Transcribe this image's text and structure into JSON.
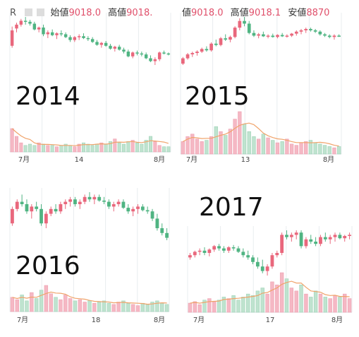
{
  "colors": {
    "up": "#e9677c",
    "down": "#4fb482",
    "vol_up": "#f5b8c4",
    "vol_down": "#bfe3cf",
    "ma": "#f0a36a",
    "grid": "#e8ecef"
  },
  "header": {
    "left": {
      "cut_char": "R",
      "open_label": "始値",
      "open_value": "9018.0",
      "high_label": "高値",
      "high_value": "9018."
    },
    "right": {
      "open_label": "値",
      "open_value": "9018.0",
      "high_label": "高値",
      "high_value": "9018.1",
      "low_label": "安値",
      "low_value": "8870"
    }
  },
  "chart_data": [
    {
      "type": "candlestick",
      "year_label": "2014",
      "x_ticks": [
        "7月",
        "14",
        "8月"
      ],
      "ohlc": [
        [
          8,
          28,
          6,
          24
        ],
        [
          26,
          32,
          22,
          30
        ],
        [
          30,
          36,
          28,
          34
        ],
        [
          34,
          38,
          30,
          33
        ],
        [
          33,
          35,
          29,
          31
        ],
        [
          31,
          33,
          24,
          25
        ],
        [
          25,
          28,
          22,
          27
        ],
        [
          27,
          30,
          18,
          20
        ],
        [
          20,
          24,
          16,
          22
        ],
        [
          22,
          25,
          18,
          19
        ],
        [
          19,
          22,
          15,
          21
        ],
        [
          21,
          24,
          18,
          20
        ],
        [
          20,
          22,
          16,
          17
        ],
        [
          17,
          19,
          12,
          14
        ],
        [
          14,
          18,
          12,
          17
        ],
        [
          17,
          20,
          14,
          18
        ],
        [
          18,
          21,
          15,
          16
        ],
        [
          16,
          18,
          13,
          15
        ],
        [
          15,
          17,
          11,
          12
        ],
        [
          12,
          14,
          8,
          9
        ],
        [
          9,
          12,
          6,
          11
        ],
        [
          11,
          13,
          7,
          8
        ],
        [
          8,
          10,
          4,
          5
        ],
        [
          5,
          8,
          2,
          7
        ],
        [
          7,
          9,
          3,
          4
        ],
        [
          4,
          6,
          0,
          2
        ],
        [
          2,
          4,
          -4,
          -3
        ],
        [
          -3,
          2,
          -5,
          1
        ],
        [
          1,
          3,
          -2,
          0
        ],
        [
          0,
          2,
          -3,
          -1
        ],
        [
          -1,
          1,
          -6,
          -5
        ],
        [
          -5,
          -2,
          -9,
          -8
        ],
        [
          -8,
          -4,
          -12,
          -6
        ],
        [
          -6,
          2,
          -8,
          1
        ],
        [
          1,
          3,
          -1,
          0
        ],
        [
          0,
          1,
          -2,
          -1
        ]
      ],
      "volume": [
        18,
        12,
        7,
        5,
        6,
        5,
        7,
        6,
        5,
        5,
        4,
        5,
        6,
        5,
        4,
        6,
        7,
        6,
        5,
        6,
        7,
        6,
        8,
        10,
        7,
        6,
        8,
        9,
        7,
        6,
        9,
        12,
        8,
        5,
        4,
        4
      ]
    },
    {
      "type": "candlestick",
      "year_label": "2015",
      "x_ticks": [
        "7月",
        "13",
        "8月"
      ],
      "ohlc": [
        [
          -20,
          -10,
          -22,
          -12
        ],
        [
          -12,
          -4,
          -14,
          -6
        ],
        [
          -6,
          -2,
          -10,
          -4
        ],
        [
          -4,
          0,
          -8,
          -2
        ],
        [
          -2,
          4,
          -4,
          2
        ],
        [
          2,
          6,
          -2,
          0
        ],
        [
          0,
          12,
          -2,
          10
        ],
        [
          10,
          16,
          6,
          8
        ],
        [
          8,
          20,
          6,
          18
        ],
        [
          18,
          24,
          14,
          16
        ],
        [
          16,
          22,
          12,
          20
        ],
        [
          20,
          36,
          18,
          34
        ],
        [
          34,
          48,
          30,
          44
        ],
        [
          44,
          50,
          36,
          40
        ],
        [
          40,
          44,
          24,
          26
        ],
        [
          26,
          30,
          20,
          22
        ],
        [
          22,
          26,
          18,
          24
        ],
        [
          24,
          28,
          20,
          21
        ],
        [
          21,
          24,
          18,
          22
        ],
        [
          22,
          25,
          19,
          20
        ],
        [
          20,
          24,
          18,
          23
        ],
        [
          23,
          26,
          20,
          21
        ],
        [
          21,
          24,
          19,
          22
        ],
        [
          22,
          26,
          20,
          25
        ],
        [
          25,
          30,
          22,
          28
        ],
        [
          28,
          32,
          24,
          30
        ],
        [
          30,
          34,
          26,
          32
        ],
        [
          32,
          34,
          28,
          30
        ],
        [
          30,
          32,
          26,
          28
        ],
        [
          28,
          30,
          22,
          24
        ],
        [
          24,
          26,
          20,
          22
        ],
        [
          22,
          24,
          18,
          20
        ],
        [
          20,
          24,
          16,
          22
        ],
        [
          22,
          24,
          20,
          21
        ]
      ],
      "volume": [
        10,
        14,
        16,
        12,
        10,
        11,
        14,
        22,
        18,
        15,
        20,
        28,
        34,
        24,
        18,
        14,
        12,
        16,
        13,
        11,
        9,
        10,
        12,
        8,
        7,
        9,
        10,
        11,
        9,
        8,
        7,
        6,
        5,
        6
      ]
    },
    {
      "type": "candlestick",
      "year_label": "2016",
      "x_ticks": [
        "7月",
        "18",
        "8月"
      ],
      "ohlc": [
        [
          -6,
          8,
          -8,
          6
        ],
        [
          6,
          14,
          4,
          12
        ],
        [
          12,
          18,
          8,
          10
        ],
        [
          10,
          14,
          2,
          4
        ],
        [
          4,
          10,
          -2,
          8
        ],
        [
          8,
          12,
          4,
          6
        ],
        [
          6,
          10,
          -8,
          -6
        ],
        [
          -6,
          4,
          -10,
          2
        ],
        [
          2,
          8,
          0,
          6
        ],
        [
          6,
          10,
          2,
          4
        ],
        [
          4,
          12,
          2,
          10
        ],
        [
          10,
          14,
          6,
          12
        ],
        [
          12,
          16,
          8,
          14
        ],
        [
          14,
          16,
          8,
          10
        ],
        [
          10,
          14,
          6,
          12
        ],
        [
          12,
          18,
          10,
          16
        ],
        [
          16,
          20,
          12,
          14
        ],
        [
          14,
          18,
          10,
          16
        ],
        [
          16,
          18,
          12,
          13
        ],
        [
          13,
          16,
          10,
          12
        ],
        [
          12,
          14,
          6,
          8
        ],
        [
          8,
          12,
          4,
          10
        ],
        [
          10,
          14,
          8,
          12
        ],
        [
          12,
          14,
          6,
          7
        ],
        [
          7,
          10,
          2,
          4
        ],
        [
          4,
          8,
          0,
          6
        ],
        [
          6,
          10,
          2,
          8
        ],
        [
          8,
          10,
          4,
          5
        ],
        [
          5,
          8,
          2,
          4
        ],
        [
          4,
          6,
          -4,
          -2
        ],
        [
          -2,
          2,
          -12,
          -10
        ],
        [
          -10,
          -6,
          -16,
          -14
        ],
        [
          -14,
          -10,
          -20,
          -18
        ]
      ],
      "volume": [
        12,
        10,
        14,
        9,
        16,
        11,
        18,
        22,
        15,
        12,
        10,
        14,
        11,
        9,
        10,
        8,
        9,
        7,
        8,
        9,
        7,
        6,
        8,
        9,
        7,
        6,
        5,
        7,
        6,
        8,
        9,
        7,
        6
      ]
    },
    {
      "type": "candlestick",
      "year_label": "2017",
      "x_ticks": [
        "7月",
        "17",
        "8月"
      ],
      "ohlc": [
        [
          -8,
          -4,
          -10,
          -6
        ],
        [
          -6,
          -2,
          -8,
          -3
        ],
        [
          -3,
          0,
          -6,
          -2
        ],
        [
          -2,
          1,
          -6,
          -4
        ],
        [
          -4,
          0,
          -7,
          -1
        ],
        [
          -1,
          3,
          -3,
          2
        ],
        [
          2,
          4,
          -2,
          0
        ],
        [
          0,
          2,
          -4,
          -2
        ],
        [
          -2,
          2,
          -4,
          1
        ],
        [
          1,
          3,
          -2,
          0
        ],
        [
          0,
          2,
          -4,
          -3
        ],
        [
          -3,
          0,
          -8,
          -6
        ],
        [
          -6,
          -2,
          -10,
          -8
        ],
        [
          -8,
          -6,
          -14,
          -12
        ],
        [
          -12,
          -8,
          -18,
          -16
        ],
        [
          -16,
          -10,
          -22,
          -20
        ],
        [
          -20,
          -14,
          -24,
          -16
        ],
        [
          -16,
          -4,
          -18,
          -6
        ],
        [
          -6,
          -2,
          -8,
          -4
        ],
        [
          -4,
          14,
          -6,
          12
        ],
        [
          12,
          16,
          8,
          10
        ],
        [
          10,
          14,
          6,
          12
        ],
        [
          12,
          16,
          8,
          14
        ],
        [
          14,
          16,
          0,
          2
        ],
        [
          2,
          10,
          0,
          8
        ],
        [
          8,
          12,
          4,
          6
        ],
        [
          6,
          10,
          2,
          4
        ],
        [
          4,
          12,
          2,
          10
        ],
        [
          10,
          14,
          6,
          8
        ],
        [
          8,
          12,
          4,
          10
        ],
        [
          10,
          14,
          6,
          12
        ],
        [
          12,
          14,
          8,
          9
        ],
        [
          9,
          12,
          6,
          11
        ],
        [
          11,
          14,
          8,
          12
        ]
      ],
      "volume": [
        6,
        7,
        5,
        8,
        9,
        7,
        8,
        10,
        9,
        11,
        8,
        10,
        12,
        11,
        14,
        16,
        12,
        20,
        18,
        26,
        22,
        16,
        14,
        18,
        12,
        10,
        14,
        12,
        10,
        9,
        11,
        10,
        12,
        9
      ]
    }
  ]
}
